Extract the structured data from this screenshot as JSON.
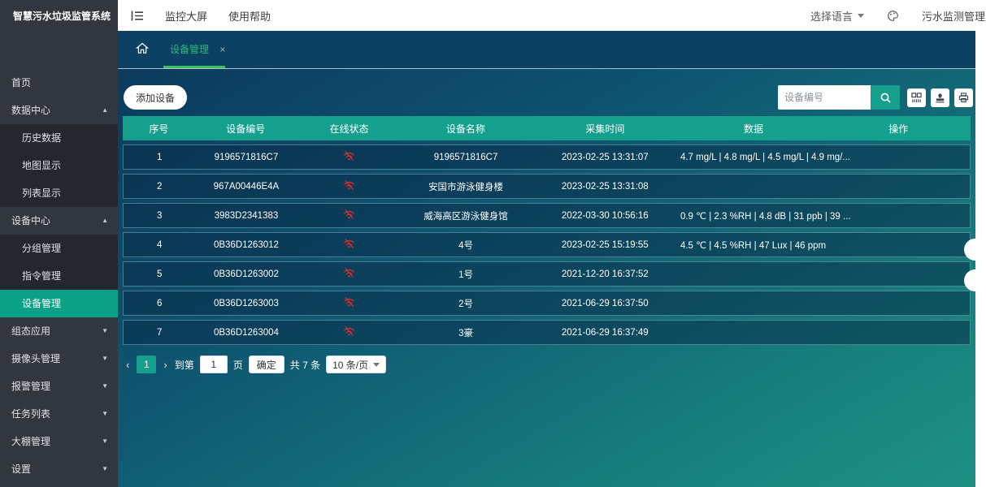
{
  "app": {
    "title": "智慧污水垃圾监管系统"
  },
  "topbar": {
    "menu_items": {
      "monitor": "监控大屏",
      "help": "使用帮助"
    },
    "language_label": "选择语言",
    "username": "污水监测管理"
  },
  "tabs": {
    "active_label": "设备管理",
    "close_label": "×"
  },
  "sidebar": {
    "items": [
      {
        "id": "home",
        "label": "首页"
      },
      {
        "id": "data-center",
        "label": "数据中心",
        "arrow": "up"
      },
      {
        "id": "history-data",
        "label": "历史数据",
        "sub": true
      },
      {
        "id": "map-display",
        "label": "地图显示",
        "sub": true
      },
      {
        "id": "list-display",
        "label": "列表显示",
        "sub": true
      },
      {
        "id": "device-center",
        "label": "设备中心",
        "arrow": "up"
      },
      {
        "id": "group-management",
        "label": "分组管理",
        "sub": true
      },
      {
        "id": "command-management",
        "label": "指令管理",
        "sub": true
      },
      {
        "id": "device-management",
        "label": "设备管理",
        "sub": true,
        "active": true
      },
      {
        "id": "configuration-app",
        "label": "组态应用",
        "arrow": "down"
      },
      {
        "id": "camera-management",
        "label": "摄像头管理",
        "arrow": "down"
      },
      {
        "id": "alarm-management",
        "label": "报警管理",
        "arrow": "down"
      },
      {
        "id": "task-list",
        "label": "任务列表",
        "arrow": "down"
      },
      {
        "id": "greenhouse-management",
        "label": "大棚管理",
        "arrow": "down"
      },
      {
        "id": "settings",
        "label": "设置",
        "arrow": "down"
      }
    ]
  },
  "toolbar": {
    "add_button_label": "添加设备",
    "search_placeholder": "设备编号"
  },
  "table": {
    "headers": [
      "序号",
      "设备编号",
      "在线状态",
      "设备名称",
      "采集时间",
      "数据",
      "操作"
    ],
    "rows": [
      {
        "no": "1",
        "device_id": "9196571816C7",
        "status": "offline",
        "name": "9196571816C7",
        "time": "2023-02-25 13:31:07",
        "data": "4.7 mg/L | 4.8 mg/L | 4.5 mg/L | 4.9 mg/..."
      },
      {
        "no": "2",
        "device_id": "967A00446E4A",
        "status": "offline",
        "name": "安国市游泳健身楼",
        "time": "2023-02-25 13:31:08",
        "data": ""
      },
      {
        "no": "3",
        "device_id": "3983D2341383",
        "status": "offline",
        "name": "威海高区游泳健身馆",
        "time": "2022-03-30 10:56:16",
        "data": "0.9 ℃ | 2.3 %RH | 4.8 dB | 31 ppb | 39 ..."
      },
      {
        "no": "4",
        "device_id": "0B36D1263012",
        "status": "offline",
        "name": "4号",
        "time": "2023-02-25 15:19:55",
        "data": "4.5 ℃ | 4.5 %RH | 47 Lux | 46 ppm"
      },
      {
        "no": "5",
        "device_id": "0B36D1263002",
        "status": "offline",
        "name": "1号",
        "time": "2021-12-20 16:37:52",
        "data": ""
      },
      {
        "no": "6",
        "device_id": "0B36D1263003",
        "status": "offline",
        "name": "2号",
        "time": "2021-06-29 16:37:50",
        "data": ""
      },
      {
        "no": "7",
        "device_id": "0B36D1263004",
        "status": "offline",
        "name": "3豪",
        "time": "2021-06-29 16:37:49",
        "data": ""
      }
    ]
  },
  "pagination": {
    "prev_label": "‹",
    "current_page": "1",
    "next_label": "›",
    "goto_label": "到第",
    "page_input_value": "1",
    "page_unit": "页",
    "confirm_label": "确定",
    "total_label": "共 7 条",
    "page_size_label": "10 条/页"
  },
  "colors": {
    "accent_teal": "#14a08d",
    "sidebar_bg": "#32363e",
    "sidebar_active": "#0ba187",
    "tab_green": "#25bd71",
    "status_offline_red": "#d22f2f",
    "content_gradient_start": "#0c3a5c",
    "content_gradient_end": "#1e9082"
  }
}
